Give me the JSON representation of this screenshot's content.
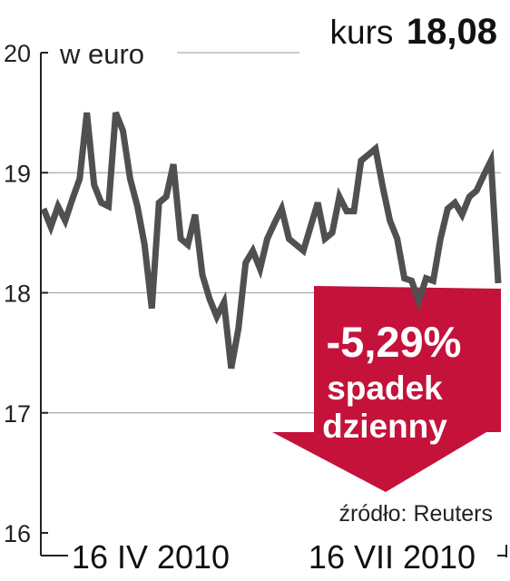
{
  "header": {
    "kurs_label": "kurs",
    "kurs_value": "18,08"
  },
  "badge": {
    "change": "-5,29%",
    "line1": "spadek",
    "line2": "dzienny"
  },
  "source": "źródło: Reuters",
  "colors": {
    "line": "#505050",
    "badge": "#c4123a",
    "grid": "#aaaaaa"
  },
  "chart_data": {
    "type": "line",
    "title": "",
    "ylabel": "w euro",
    "ylim": [
      16,
      20
    ],
    "yticks": [
      "16",
      "17",
      "18",
      "19",
      "20"
    ],
    "xticks": [
      "16 IV 2010",
      "16 VII 2010"
    ],
    "grid": "horizontal",
    "series": [
      {
        "values": [
          18.7,
          18.55,
          18.72,
          18.6,
          18.78,
          18.95,
          19.5,
          18.9,
          18.75,
          18.72,
          19.5,
          19.35,
          18.95,
          18.72,
          18.4,
          17.87,
          18.75,
          18.8,
          19.07,
          18.45,
          18.4,
          18.65,
          18.15,
          17.95,
          17.8,
          17.92,
          17.37,
          17.7,
          18.25,
          18.35,
          18.2,
          18.45,
          18.58,
          18.7,
          18.45,
          18.4,
          18.35,
          18.55,
          18.75,
          18.45,
          18.5,
          18.8,
          18.68,
          18.68,
          19.1,
          19.15,
          19.2,
          18.88,
          18.6,
          18.45,
          18.12,
          18.1,
          17.93,
          18.12,
          18.1,
          18.45,
          18.7,
          18.75,
          18.65,
          18.8,
          18.85,
          18.98,
          19.1,
          18.08
        ]
      }
    ]
  }
}
